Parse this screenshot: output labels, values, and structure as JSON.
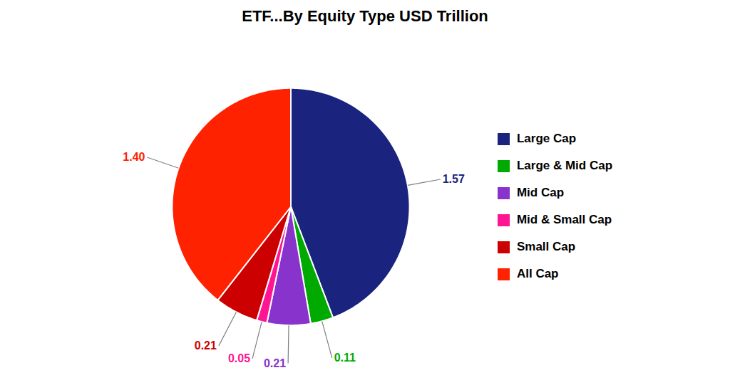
{
  "chart_data": {
    "type": "pie",
    "title": "ETF...By Equity Type USD Trillion",
    "categories": [
      "Large Cap",
      "Large & Mid Cap",
      "Mid Cap",
      "Mid & Small Cap",
      "Small Cap",
      "All Cap"
    ],
    "values": [
      1.57,
      0.11,
      0.21,
      0.05,
      0.21,
      1.4
    ],
    "value_labels": [
      "1.57",
      "0.11",
      "0.21",
      "0.05",
      "0.21",
      "1.40"
    ],
    "colors": [
      "#1a237e",
      "#00aa00",
      "#8833cc",
      "#ff1493",
      "#cc0000",
      "#ff2200"
    ],
    "data_labels": true,
    "legend": "right"
  }
}
